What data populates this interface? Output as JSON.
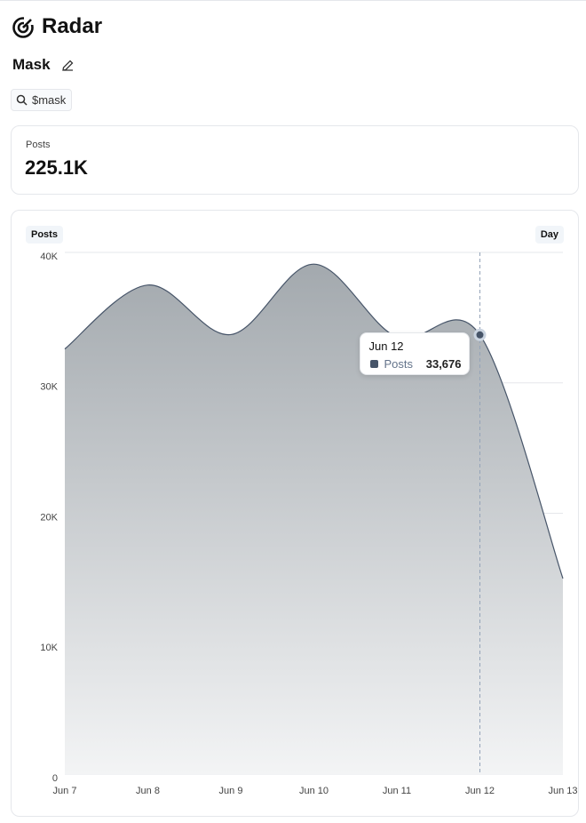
{
  "header": {
    "title": "Radar",
    "subtitle": "Mask",
    "search": "$mask"
  },
  "stats": {
    "label": "Posts",
    "value": "225.1K"
  },
  "chart_data": {
    "type": "area",
    "interval": "Day",
    "categories": [
      "Jun 7",
      "Jun 8",
      "Jun 9",
      "Jun 10",
      "Jun 11",
      "Jun 12",
      "Jun 13"
    ],
    "series": [
      {
        "name": "Posts",
        "color": "#475569",
        "values": [
          32600,
          37500,
          33700,
          39100,
          33500,
          33676,
          15000
        ]
      }
    ],
    "ylim": [
      0,
      40000
    ],
    "yticks": [
      0,
      {
        "value": 10000,
        "label": "10K"
      },
      {
        "value": 20000,
        "label": "20K"
      },
      {
        "value": 30000,
        "label": "30K"
      },
      {
        "value": 40000,
        "label": "40K"
      }
    ],
    "grid": true,
    "tooltip": {
      "x": "Jun 12",
      "series": "Posts",
      "value": {
        "value": 33676,
        "label": "33,676"
      }
    }
  }
}
